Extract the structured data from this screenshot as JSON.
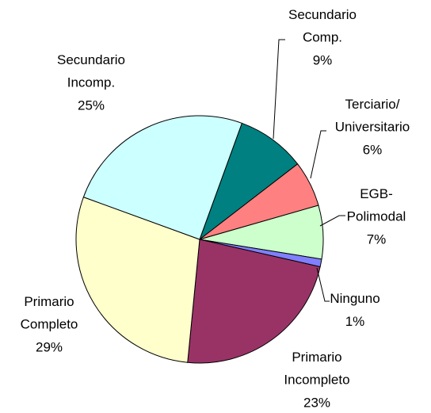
{
  "chart_data": {
    "type": "pie",
    "categories": [
      "Secundario\nComp.",
      "Terciario/\nUniversitario",
      "EGB-\nPolimodal",
      "Ninguno",
      "Primario\nIncompleto",
      "Primario\nCompleto",
      "Secundario\nIncomp."
    ],
    "values": [
      9,
      6,
      7,
      1,
      23,
      29,
      25
    ],
    "value_labels": [
      "9%",
      "6%",
      "7%",
      "1%",
      "23%",
      "29%",
      "25%"
    ],
    "colors": [
      "#008080",
      "#ff8080",
      "#ccffcc",
      "#8080ff",
      "#993366",
      "#ffffcc",
      "#ccffff"
    ]
  }
}
